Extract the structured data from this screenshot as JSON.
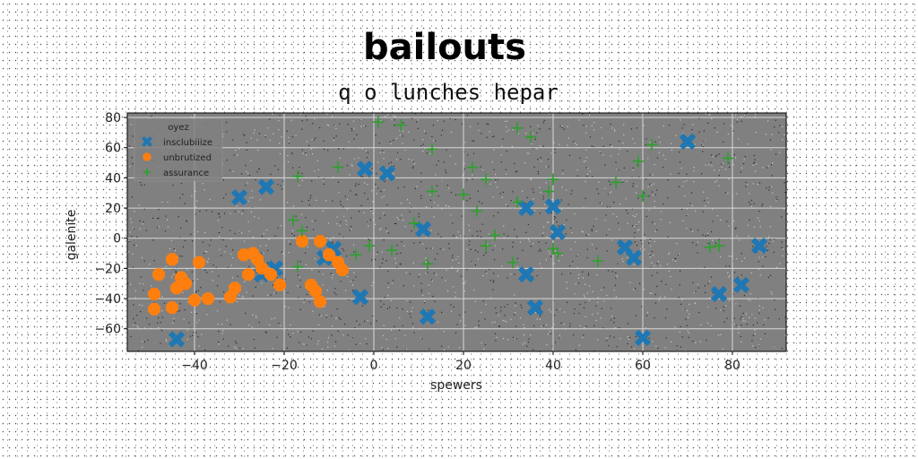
{
  "chart_data": {
    "type": "scatter",
    "title": "bailouts",
    "subtitle": "q o lunches hepar",
    "xlabel": "spewers",
    "ylabel": "galenite",
    "xlim": [
      -55,
      92
    ],
    "ylim": [
      -75,
      83
    ],
    "xticks": [
      -40,
      -20,
      0,
      20,
      40,
      60,
      80
    ],
    "yticks": [
      -60,
      -40,
      -20,
      0,
      20,
      40,
      60,
      80
    ],
    "grid": true,
    "legend": {
      "title": "oyez",
      "placement": "top-left"
    },
    "series": [
      {
        "name": "insclubiiize",
        "marker": "x",
        "color": "#1f77b4",
        "points": [
          [
            -44,
            -67
          ],
          [
            -30,
            27
          ],
          [
            -24,
            34
          ],
          [
            -25,
            -24
          ],
          [
            -22,
            -20
          ],
          [
            -11,
            -13
          ],
          [
            -9,
            -7
          ],
          [
            -3,
            -39
          ],
          [
            -2,
            46
          ],
          [
            3,
            43
          ],
          [
            11,
            6
          ],
          [
            12,
            -52
          ],
          [
            34,
            -24
          ],
          [
            34,
            20
          ],
          [
            36,
            -46
          ],
          [
            40,
            21
          ],
          [
            41,
            4
          ],
          [
            56,
            -6
          ],
          [
            58,
            -13
          ],
          [
            60,
            -66
          ],
          [
            70,
            64
          ],
          [
            77,
            -37
          ],
          [
            82,
            -31
          ],
          [
            86,
            -5
          ]
        ]
      },
      {
        "name": "unbrutized",
        "marker": "o",
        "color": "#ff7f0e",
        "points": [
          [
            -49,
            -37
          ],
          [
            -49,
            -47
          ],
          [
            -48,
            -24
          ],
          [
            -45,
            -14
          ],
          [
            -45,
            -46
          ],
          [
            -44,
            -33
          ],
          [
            -43,
            -26
          ],
          [
            -42,
            -30
          ],
          [
            -40,
            -41
          ],
          [
            -39,
            -16
          ],
          [
            -37,
            -40
          ],
          [
            -32,
            -39
          ],
          [
            -31,
            -33
          ],
          [
            -29,
            -11
          ],
          [
            -27,
            -10
          ],
          [
            -28,
            -24
          ],
          [
            -26,
            -14
          ],
          [
            -25,
            -20
          ],
          [
            -23,
            -24
          ],
          [
            -21,
            -31
          ],
          [
            -16,
            -2
          ],
          [
            -14,
            -31
          ],
          [
            -13,
            -35
          ],
          [
            -12,
            -2
          ],
          [
            -12,
            -42
          ],
          [
            -10,
            -11
          ],
          [
            -8,
            -16
          ],
          [
            -7,
            -21
          ]
        ]
      },
      {
        "name": "assurance",
        "marker": "+",
        "color": "#2ca02c",
        "points": [
          [
            -18,
            12
          ],
          [
            -17,
            -19
          ],
          [
            -17,
            41
          ],
          [
            -16,
            5
          ],
          [
            -8,
            47
          ],
          [
            -4,
            -11
          ],
          [
            -1,
            -5
          ],
          [
            1,
            77
          ],
          [
            4,
            -8
          ],
          [
            6,
            75
          ],
          [
            9,
            10
          ],
          [
            12,
            -17
          ],
          [
            13,
            59
          ],
          [
            13,
            31
          ],
          [
            20,
            29
          ],
          [
            22,
            47
          ],
          [
            23,
            18
          ],
          [
            25,
            -5
          ],
          [
            25,
            39
          ],
          [
            27,
            2
          ],
          [
            31,
            -16
          ],
          [
            32,
            24
          ],
          [
            32,
            73
          ],
          [
            35,
            67
          ],
          [
            39,
            31
          ],
          [
            40,
            39
          ],
          [
            40,
            -7
          ],
          [
            41,
            -10
          ],
          [
            50,
            -15
          ],
          [
            54,
            37
          ],
          [
            59,
            51
          ],
          [
            60,
            28
          ],
          [
            62,
            62
          ],
          [
            75,
            -6
          ],
          [
            77,
            -5
          ],
          [
            79,
            53
          ]
        ]
      }
    ]
  }
}
